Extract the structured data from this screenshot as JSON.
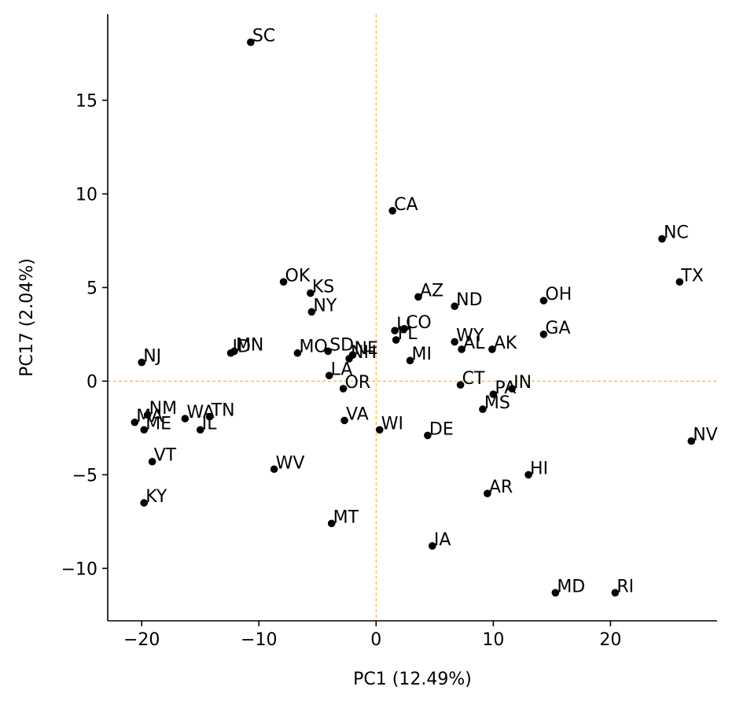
{
  "chart_data": {
    "type": "scatter",
    "title": "",
    "xlabel": "PC1 (12.49%)",
    "ylabel": "PC17 (2.04%)",
    "xlim": [
      -22.9,
      29.1
    ],
    "ylim": [
      -12.8,
      19.6
    ],
    "xticks": [
      -20,
      -10,
      0,
      10,
      20
    ],
    "yticks": [
      -10,
      -5,
      0,
      5,
      10,
      15
    ],
    "xtick_labels": [
      "−20",
      "−10",
      "0",
      "10",
      "20"
    ],
    "ytick_labels": [
      "−10",
      "−5",
      "0",
      "5",
      "10",
      "15"
    ],
    "reference_lines": {
      "x": 0,
      "y": 0,
      "color": "#ffa500",
      "style": "dashed"
    },
    "point_color": "#000000",
    "points": [
      {
        "label": "SC",
        "x": -10.7,
        "y": 18.1
      },
      {
        "label": "CA",
        "x": 1.4,
        "y": 9.1
      },
      {
        "label": "NC",
        "x": 24.4,
        "y": 7.6
      },
      {
        "label": "TX",
        "x": 25.9,
        "y": 5.3
      },
      {
        "label": "OK",
        "x": -7.9,
        "y": 5.3
      },
      {
        "label": "KS",
        "x": -5.6,
        "y": 4.7
      },
      {
        "label": "NY",
        "x": -5.5,
        "y": 3.7
      },
      {
        "label": "AZ",
        "x": 3.6,
        "y": 4.5
      },
      {
        "label": "ND",
        "x": 6.7,
        "y": 4.0
      },
      {
        "label": "OH",
        "x": 14.3,
        "y": 4.3
      },
      {
        "label": "GA",
        "x": 14.3,
        "y": 2.5
      },
      {
        "label": "LI",
        "x": 1.6,
        "y": 2.7
      },
      {
        "label": "CO",
        "x": 2.4,
        "y": 2.8
      },
      {
        "label": "FL",
        "x": 1.7,
        "y": 2.2
      },
      {
        "label": "WY",
        "x": 6.7,
        "y": 2.1
      },
      {
        "label": "AL",
        "x": 7.3,
        "y": 1.7
      },
      {
        "label": "AK",
        "x": 9.9,
        "y": 1.7
      },
      {
        "label": "MI",
        "x": 2.9,
        "y": 1.1
      },
      {
        "label": "NJ",
        "x": -20.0,
        "y": 1.0
      },
      {
        "label": "ID",
        "x": -12.4,
        "y": 1.5
      },
      {
        "label": "MN",
        "x": -12.1,
        "y": 1.6
      },
      {
        "label": "MO",
        "x": -6.7,
        "y": 1.5
      },
      {
        "label": "SD",
        "x": -4.1,
        "y": 1.6
      },
      {
        "label": "NE",
        "x": -2.0,
        "y": 1.4
      },
      {
        "label": "NH",
        "x": -2.3,
        "y": 1.2
      },
      {
        "label": "LA",
        "x": -4.0,
        "y": 0.3
      },
      {
        "label": "OR",
        "x": -2.8,
        "y": -0.4
      },
      {
        "label": "CT",
        "x": 7.2,
        "y": -0.2
      },
      {
        "label": "IN",
        "x": 11.6,
        "y": -0.4
      },
      {
        "label": "PA",
        "x": 10.0,
        "y": -0.7
      },
      {
        "label": "MS",
        "x": 9.1,
        "y": -1.5
      },
      {
        "label": "MA",
        "x": -20.6,
        "y": -2.2
      },
      {
        "label": "NM",
        "x": -19.5,
        "y": -1.8
      },
      {
        "label": "ME",
        "x": -19.8,
        "y": -2.6
      },
      {
        "label": "WA",
        "x": -16.3,
        "y": -2.0
      },
      {
        "label": "TN",
        "x": -14.2,
        "y": -1.9
      },
      {
        "label": "IL",
        "x": -15.0,
        "y": -2.6
      },
      {
        "label": "VA",
        "x": -2.7,
        "y": -2.1
      },
      {
        "label": "WI",
        "x": 0.3,
        "y": -2.6
      },
      {
        "label": "DE",
        "x": 4.4,
        "y": -2.9
      },
      {
        "label": "NV",
        "x": 26.9,
        "y": -3.2
      },
      {
        "label": "VT",
        "x": -19.1,
        "y": -4.3
      },
      {
        "label": "WV",
        "x": -8.7,
        "y": -4.7
      },
      {
        "label": "HI",
        "x": 13.0,
        "y": -5.0
      },
      {
        "label": "AR",
        "x": 9.5,
        "y": -6.0
      },
      {
        "label": "KY",
        "x": -19.8,
        "y": -6.5
      },
      {
        "label": "MT",
        "x": -3.8,
        "y": -7.6
      },
      {
        "label": "IA",
        "x": 4.8,
        "y": -8.8
      },
      {
        "label": "MD",
        "x": 15.3,
        "y": -11.3
      },
      {
        "label": "RI",
        "x": 20.4,
        "y": -11.3
      }
    ]
  }
}
